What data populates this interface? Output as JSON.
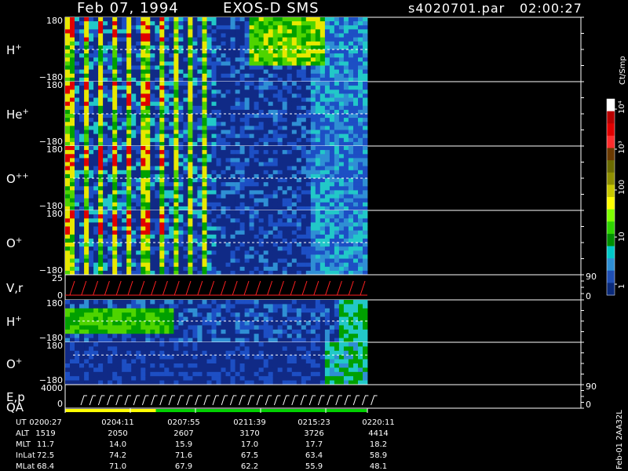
{
  "header": {
    "date": "Feb 07, 1994",
    "mission": "EXOS-D SMS",
    "file": "s4020701.par",
    "time": "02:00:27"
  },
  "colorbar": {
    "unit_label": "Ct/Smp",
    "tick_labels": [
      "10⁴",
      "10³",
      "100",
      "10",
      "1"
    ],
    "colors": [
      "#ffffff",
      "#b90000",
      "#e00000",
      "#ff2d2d",
      "#6b3a00",
      "#6b6b00",
      "#8f8f00",
      "#c8c800",
      "#ffff00",
      "#7fff00",
      "#2fd400",
      "#008f00",
      "#00c8c8",
      "#2f8fd4",
      "#1f4fb4",
      "#0a2a7a"
    ]
  },
  "chart_data": {
    "type": "heatmap",
    "panels": [
      {
        "label": "H",
        "sup": "+",
        "ylim": [
          -180,
          180
        ],
        "ytick_top": "180",
        "ytick_bottom": "−180",
        "mode": "main_h"
      },
      {
        "label": "He",
        "sup": "+",
        "ylim": [
          -180,
          180
        ],
        "ytick_top": "180",
        "ytick_bottom": "−180",
        "mode": "main"
      },
      {
        "label": "O",
        "sup": "++",
        "ylim": [
          -180,
          180
        ],
        "ytick_top": "180",
        "ytick_bottom": "−180",
        "mode": "main"
      },
      {
        "label": "O",
        "sup": "+",
        "ylim": [
          -180,
          180
        ],
        "ytick_top": "180",
        "ytick_bottom": "−180",
        "mode": "main"
      },
      {
        "label": "V,r",
        "sup": "",
        "ytick_top": "25",
        "ytick_bottom": "0",
        "right_top": "90",
        "right_bottom": "0",
        "mode": "line"
      },
      {
        "label": "H",
        "sup": "+",
        "ylim": [
          -180,
          180
        ],
        "ytick_top": "180",
        "ytick_bottom": "−180",
        "mode": "low_h"
      },
      {
        "label": "O",
        "sup": "+",
        "ylim": [
          -180,
          180
        ],
        "ytick_top": "180",
        "ytick_bottom": "−180",
        "mode": "low_o"
      },
      {
        "label": "E,p",
        "label2": "QA",
        "sup": "",
        "ytick_top": "4000",
        "ytick_bottom": "0",
        "right_top": "90",
        "right_bottom": "0",
        "mode": "ep"
      }
    ],
    "time_axis": {
      "rows": [
        {
          "name": "UT",
          "values": [
            "0200:27",
            "0204:11",
            "0207:55",
            "0211:39",
            "0215:23",
            "0220:11"
          ]
        },
        {
          "name": "ALT",
          "values": [
            "1519",
            "2050",
            "2607",
            "3170",
            "3726",
            "4414"
          ]
        },
        {
          "name": "MLT",
          "values": [
            "11.7",
            "14.0",
            "15.9",
            "17.0",
            "17.7",
            "18.2"
          ]
        },
        {
          "name": "InLat",
          "values": [
            "72.5",
            "74.2",
            "71.6",
            "67.5",
            "63.4",
            "58.9"
          ]
        },
        {
          "name": "MLat",
          "values": [
            "68.4",
            "71.0",
            "67.9",
            "62.2",
            "55.9",
            "48.1"
          ]
        }
      ]
    },
    "qa_bar": [
      {
        "color": "#ffff00",
        "fraction": 0.3
      },
      {
        "color": "#00d000",
        "fraction": 0.7
      }
    ]
  },
  "footer": {
    "stamp": "Feb-01 2AA32L"
  }
}
